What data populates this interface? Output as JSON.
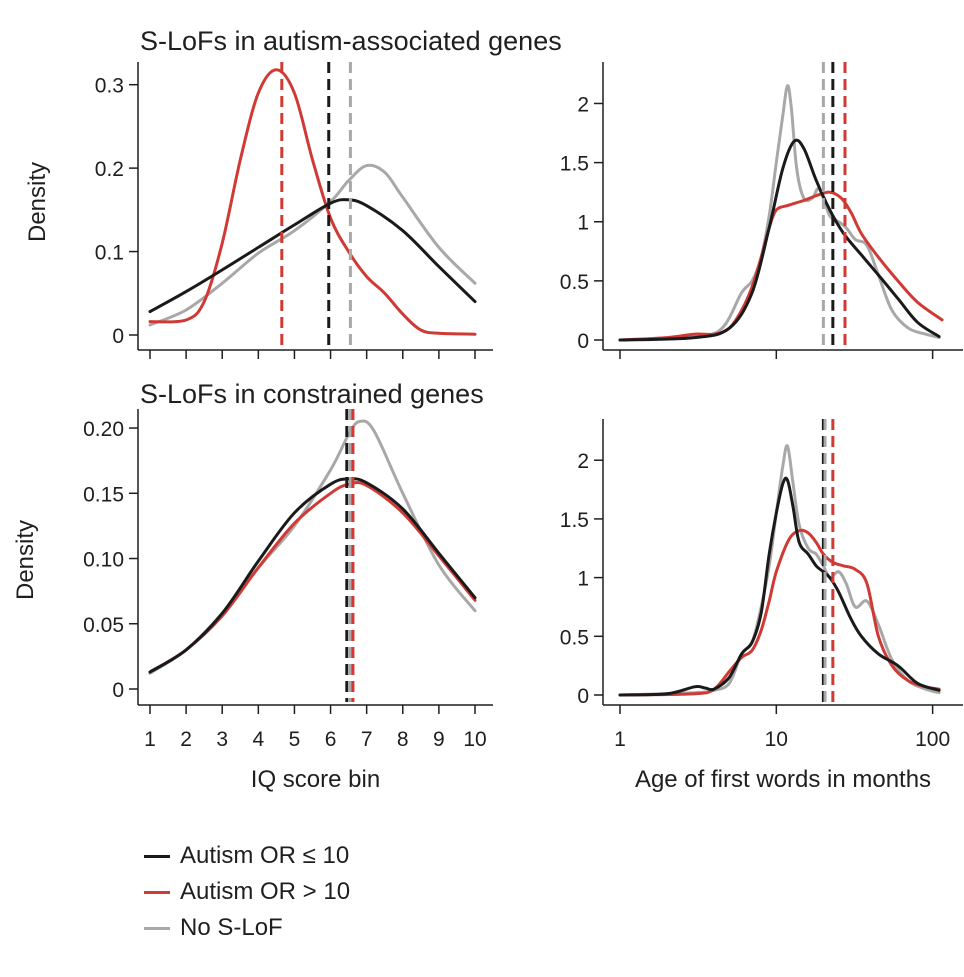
{
  "colors": {
    "low": "#1a1a1a",
    "high": "#d03a35",
    "none": "#a8a8a8",
    "axis": "#1f1f1f"
  },
  "row_titles": {
    "top": "S-LoFs in autism-associated genes",
    "bottom": "S-LoFs in constrained genes"
  },
  "legend": [
    {
      "label": "Autism OR ≤ 10",
      "color": "#1a1a1a"
    },
    {
      "label": "Autism OR > 10",
      "color": "#d03a35"
    },
    {
      "label": "No S-LoF",
      "color": "#a8a8a8"
    }
  ],
  "chart_data": [
    {
      "id": "iq_autism",
      "type": "line",
      "title": "S-LoFs in autism-associated genes",
      "xlabel": "",
      "ylabel": "Density",
      "xscale": "linear",
      "xlim": [
        1,
        10
      ],
      "ylim": [
        0,
        0.32
      ],
      "xticks": [
        1,
        2,
        3,
        4,
        5,
        6,
        7,
        8,
        9,
        10
      ],
      "show_xticklabels": false,
      "yticks": [
        0,
        0.1,
        0.2,
        0.3
      ],
      "yticklabels": [
        "0",
        "0.1",
        "0.2",
        "0.3"
      ],
      "series": [
        {
          "name": "Autism OR ≤ 10",
          "x": [
            1,
            2,
            3,
            4,
            5,
            6,
            6.5,
            7,
            8,
            9,
            10
          ],
          "y": [
            0.028,
            0.052,
            0.078,
            0.105,
            0.132,
            0.158,
            0.162,
            0.155,
            0.125,
            0.082,
            0.04
          ],
          "mean": 5.95
        },
        {
          "name": "Autism OR > 10",
          "x": [
            1,
            2,
            2.5,
            3,
            3.5,
            4,
            4.5,
            5,
            5.5,
            6,
            6.5,
            7,
            7.5,
            8,
            8.5,
            9,
            10
          ],
          "y": [
            0.016,
            0.018,
            0.04,
            0.11,
            0.21,
            0.29,
            0.318,
            0.29,
            0.21,
            0.14,
            0.1,
            0.07,
            0.05,
            0.025,
            0.006,
            0.002,
            0.001
          ],
          "mean": 4.65
        },
        {
          "name": "No S-LoF",
          "x": [
            1,
            2,
            3,
            4,
            5,
            6,
            6.5,
            7,
            7.5,
            8,
            9,
            10
          ],
          "y": [
            0.012,
            0.03,
            0.062,
            0.098,
            0.125,
            0.16,
            0.185,
            0.203,
            0.195,
            0.165,
            0.105,
            0.062
          ],
          "mean": 6.55
        }
      ]
    },
    {
      "id": "words_autism",
      "type": "line",
      "title": "",
      "xlabel": "",
      "ylabel": "",
      "xscale": "log",
      "xlim": [
        1,
        120
      ],
      "ylim": [
        0,
        2.3
      ],
      "xticks": [
        1,
        10,
        100
      ],
      "show_xticklabels": false,
      "yticks": [
        0,
        0.5,
        1,
        1.5,
        2
      ],
      "yticklabels": [
        "0",
        "0.5",
        "1",
        "1.5",
        "2"
      ],
      "series": [
        {
          "name": "Autism OR ≤ 10",
          "x": [
            1,
            3,
            5,
            7,
            9,
            11,
            13,
            15,
            18,
            22,
            27,
            35,
            45,
            60,
            80,
            110
          ],
          "y": [
            0,
            0.02,
            0.1,
            0.4,
            0.95,
            1.45,
            1.68,
            1.62,
            1.35,
            1.1,
            0.9,
            0.72,
            0.55,
            0.35,
            0.15,
            0.03
          ],
          "mean": 23
        },
        {
          "name": "Autism OR > 10",
          "x": [
            1,
            2,
            3,
            4,
            5,
            6,
            7,
            8,
            9,
            10,
            12,
            15,
            18,
            22,
            26,
            30,
            35,
            45,
            60,
            80,
            115
          ],
          "y": [
            0,
            0.02,
            0.05,
            0.05,
            0.1,
            0.25,
            0.45,
            0.7,
            0.95,
            1.1,
            1.14,
            1.18,
            1.22,
            1.25,
            1.2,
            1.08,
            0.9,
            0.7,
            0.5,
            0.32,
            0.17
          ],
          "mean": 27.5
        },
        {
          "name": "No S-LoF",
          "x": [
            1,
            3,
            4.5,
            6,
            7,
            8,
            9,
            10,
            11,
            11.8,
            12.5,
            13.5,
            15,
            17,
            18.5,
            20,
            22,
            25,
            28,
            32,
            38,
            45,
            55,
            70,
            90,
            110
          ],
          "y": [
            0,
            0.03,
            0.1,
            0.4,
            0.5,
            0.7,
            1.05,
            1.5,
            1.9,
            2.15,
            1.95,
            1.45,
            1.2,
            1.2,
            1.28,
            1.2,
            1.05,
            1.0,
            0.95,
            0.85,
            0.8,
            0.55,
            0.25,
            0.1,
            0.05,
            0.02
          ],
          "mean": 20
        }
      ]
    },
    {
      "id": "iq_constrained",
      "type": "line",
      "title": "S-LoFs in constrained genes",
      "xlabel": "IQ score bin",
      "ylabel": "Density",
      "xscale": "linear",
      "xlim": [
        1,
        10
      ],
      "ylim": [
        0,
        0.21
      ],
      "xticks": [
        1,
        2,
        3,
        4,
        5,
        6,
        7,
        8,
        9,
        10
      ],
      "show_xticklabels": true,
      "yticks": [
        0,
        0.05,
        0.1,
        0.15,
        0.2
      ],
      "yticklabels": [
        "0",
        "0.05",
        "0.10",
        "0.15",
        "0.20"
      ],
      "series": [
        {
          "name": "Autism OR ≤ 10",
          "x": [
            1,
            2,
            3,
            4,
            5,
            6,
            6.5,
            7,
            8,
            9,
            10
          ],
          "y": [
            0.013,
            0.03,
            0.058,
            0.098,
            0.135,
            0.157,
            0.161,
            0.158,
            0.138,
            0.104,
            0.07
          ],
          "mean": 6.45
        },
        {
          "name": "Autism OR > 10",
          "x": [
            1,
            2,
            3,
            4,
            5,
            6,
            6.5,
            7,
            8,
            9,
            10
          ],
          "y": [
            0.013,
            0.03,
            0.056,
            0.093,
            0.127,
            0.15,
            0.157,
            0.156,
            0.135,
            0.102,
            0.068
          ],
          "mean": 6.62
        },
        {
          "name": "No S-LoF",
          "x": [
            1,
            2,
            3,
            4,
            5,
            6,
            6.5,
            6.8,
            7.2,
            8,
            9,
            10
          ],
          "y": [
            0.012,
            0.03,
            0.058,
            0.093,
            0.125,
            0.168,
            0.195,
            0.205,
            0.198,
            0.15,
            0.095,
            0.06
          ],
          "mean": 6.55
        }
      ]
    },
    {
      "id": "words_constrained",
      "type": "line",
      "title": "",
      "xlabel": "Age of first words in months",
      "ylabel": "",
      "xscale": "log",
      "xlim": [
        1,
        120
      ],
      "ylim": [
        0,
        2.3
      ],
      "xticks": [
        1,
        10,
        100
      ],
      "xticklabels": [
        "1",
        "10",
        "100"
      ],
      "show_xticklabels": true,
      "yticks": [
        0,
        0.5,
        1,
        1.5,
        2
      ],
      "yticklabels": [
        "0",
        "0.5",
        "1",
        "1.5",
        "2"
      ],
      "series": [
        {
          "name": "Autism OR ≤ 10",
          "x": [
            1,
            2,
            3,
            3.5,
            4,
            5,
            6,
            7,
            8,
            9,
            10,
            11,
            11.8,
            12.8,
            14,
            16,
            18,
            20,
            22,
            25,
            30,
            35,
            45,
            60,
            80,
            110
          ],
          "y": [
            0,
            0.01,
            0.07,
            0.06,
            0.05,
            0.15,
            0.35,
            0.45,
            0.7,
            1.2,
            1.55,
            1.8,
            1.83,
            1.6,
            1.3,
            1.2,
            1.1,
            1.05,
            1.0,
            0.88,
            0.65,
            0.5,
            0.35,
            0.25,
            0.1,
            0.04
          ],
          "mean": 20
        },
        {
          "name": "Autism OR > 10",
          "x": [
            1,
            3,
            4,
            5,
            6,
            7,
            8,
            9,
            10,
            12,
            14,
            16,
            18,
            20,
            23,
            27,
            32,
            38,
            45,
            55,
            70,
            90,
            110
          ],
          "y": [
            0,
            0.01,
            0.05,
            0.2,
            0.32,
            0.38,
            0.55,
            0.8,
            1.05,
            1.32,
            1.4,
            1.38,
            1.3,
            1.2,
            1.13,
            1.1,
            1.07,
            0.95,
            0.5,
            0.25,
            0.12,
            0.07,
            0.05
          ],
          "mean": 23
        },
        {
          "name": "No S-LoF",
          "x": [
            1,
            3,
            4,
            5,
            6,
            7,
            8,
            9,
            10,
            11,
            11.8,
            12.8,
            14,
            16,
            18,
            20,
            22,
            25,
            28,
            32,
            38,
            45,
            55,
            70,
            90,
            110
          ],
          "y": [
            0,
            0.02,
            0.04,
            0.1,
            0.35,
            0.45,
            0.75,
            1.1,
            1.55,
            1.95,
            2.12,
            1.8,
            1.45,
            1.25,
            1.2,
            1.1,
            1.0,
            1.05,
            0.95,
            0.75,
            0.8,
            0.6,
            0.3,
            0.12,
            0.05,
            0.02
          ],
          "mean": 20.5
        }
      ]
    }
  ]
}
